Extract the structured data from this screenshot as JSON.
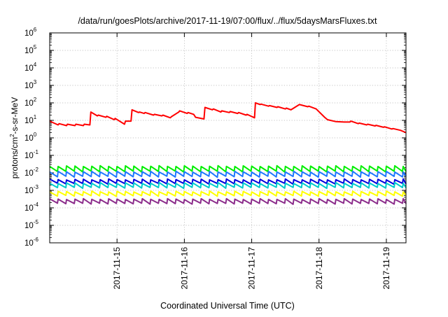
{
  "chart_data": {
    "type": "line",
    "title": "/data/run/goesPlots/archive/2017-11-19/07:00/flux/../flux/5daysMarsFluxes.txt",
    "xlabel": "Coordinated Universal Time (UTC)",
    "ylabel": "protons/cm2-s-sr-MeV",
    "ylabel_parts": {
      "before": "protons/cm",
      "sup": "2",
      "after": "-s-sr-MeV"
    },
    "y_scale": "log",
    "ylim": [
      1e-06,
      1000000.0
    ],
    "y_tick_exponents": [
      -6,
      -5,
      -4,
      -3,
      -2,
      -1,
      0,
      1,
      2,
      3,
      4,
      5,
      6
    ],
    "y_tick_base": "10",
    "xlim": [
      "2017-11-14T00:00",
      "2017-11-19T07:00"
    ],
    "x_ticks": [
      "2017-11-15",
      "2017-11-16",
      "2017-11-17",
      "2017-11-18",
      "2017-11-19"
    ],
    "grid": true,
    "legend": "none",
    "series": [
      {
        "color": "#ff0000",
        "x": [
          "2017-11-14T00:00",
          "2017-11-14T03:00",
          "2017-11-14T03:20",
          "2017-11-14T06:00",
          "2017-11-14T06:20",
          "2017-11-14T09:00",
          "2017-11-14T09:20",
          "2017-11-14T12:00",
          "2017-11-14T12:20",
          "2017-11-14T14:20",
          "2017-11-14T14:40",
          "2017-11-14T17:00",
          "2017-11-14T17:20",
          "2017-11-14T20:00",
          "2017-11-14T20:20",
          "2017-11-14T23:00",
          "2017-11-14T23:20",
          "2017-11-15T02:40",
          "2017-11-15T03:00",
          "2017-11-15T05:00",
          "2017-11-15T05:20",
          "2017-11-15T07:40",
          "2017-11-15T08:00",
          "2017-11-15T09:40",
          "2017-11-15T10:00",
          "2017-11-15T13:00",
          "2017-11-15T13:20",
          "2017-11-15T16:00",
          "2017-11-15T16:20",
          "2017-11-15T19:00",
          "2017-11-15T19:20",
          "2017-11-15T22:00",
          "2017-11-15T22:20",
          "2017-11-16T01:00",
          "2017-11-16T01:20",
          "2017-11-16T03:20",
          "2017-11-16T04:00",
          "2017-11-16T07:00",
          "2017-11-16T07:20",
          "2017-11-16T10:00",
          "2017-11-16T10:20",
          "2017-11-16T13:00",
          "2017-11-16T13:20",
          "2017-11-16T16:00",
          "2017-11-16T16:20",
          "2017-11-16T19:00",
          "2017-11-16T19:20",
          "2017-11-16T22:00",
          "2017-11-16T22:20",
          "2017-11-17T01:00",
          "2017-11-17T01:20",
          "2017-11-17T03:00",
          "2017-11-17T03:20",
          "2017-11-17T06:00",
          "2017-11-17T06:20",
          "2017-11-17T09:00",
          "2017-11-17T09:20",
          "2017-11-17T12:00",
          "2017-11-17T12:20",
          "2017-11-17T14:00",
          "2017-11-17T17:00",
          "2017-11-17T20:00",
          "2017-11-17T20:20",
          "2017-11-17T23:00",
          "2017-11-18T02:00",
          "2017-11-18T03:00",
          "2017-11-18T06:00",
          "2017-11-18T09:00",
          "2017-11-18T11:00",
          "2017-11-18T11:20",
          "2017-11-18T14:00",
          "2017-11-18T14:20",
          "2017-11-18T17:00",
          "2017-11-18T17:20",
          "2017-11-18T20:00",
          "2017-11-18T20:20",
          "2017-11-18T23:00",
          "2017-11-18T23:20",
          "2017-11-19T02:00",
          "2017-11-19T02:20",
          "2017-11-19T05:00",
          "2017-11-19T07:00"
        ],
        "values": [
          9,
          5.5,
          6.5,
          5,
          6,
          5,
          6,
          5,
          6,
          5.5,
          30,
          18,
          20,
          15,
          17,
          11,
          13,
          6,
          9,
          9,
          40,
          28,
          30,
          25,
          28,
          20,
          22,
          18,
          20,
          14,
          16,
          30,
          35,
          25,
          28,
          22,
          15,
          12,
          55,
          40,
          45,
          30,
          35,
          28,
          32,
          25,
          28,
          20,
          22,
          14,
          100,
          80,
          85,
          65,
          70,
          55,
          60,
          45,
          50,
          40,
          80,
          60,
          65,
          45,
          15,
          11,
          8.5,
          8,
          8,
          9,
          6.5,
          7,
          5.5,
          6,
          4.8,
          5.2,
          4,
          4.3,
          3.2,
          3.4,
          2.7,
          2
        ]
      },
      {
        "color": "#00ee00",
        "base": 0.02,
        "min": 0.011,
        "max": 0.026
      },
      {
        "color": "#1e78ff",
        "base": 0.0095,
        "min": 0.0056,
        "max": 0.0125
      },
      {
        "color": "#0000dd",
        "base": 0.0035,
        "min": 0.0022,
        "max": 0.0045
      },
      {
        "color": "#00cccc",
        "base": 0.0021,
        "min": 0.0013,
        "max": 0.0028
      },
      {
        "color": "#ffff00",
        "base": 0.00072,
        "min": 0.00045,
        "max": 0.00092
      },
      {
        "color": "#8b2c8b",
        "base": 0.00026,
        "min": 0.00016,
        "max": 0.00034
      }
    ]
  }
}
